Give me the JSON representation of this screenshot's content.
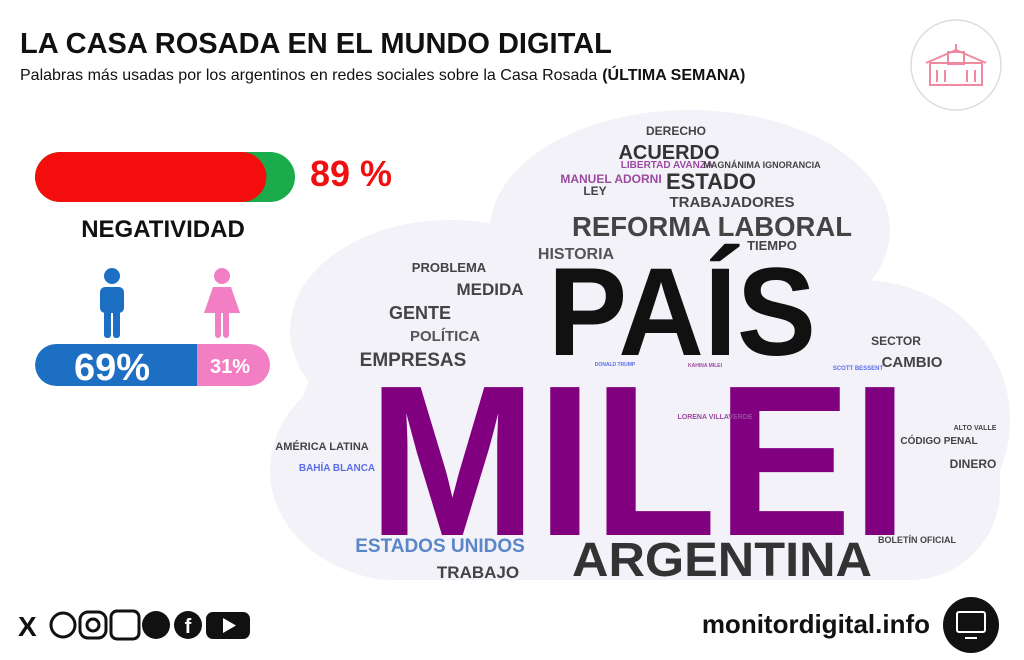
{
  "header": {
    "title": "LA CASA ROSADA EN EL MUNDO DIGITAL",
    "subtitle": "Palabras más usadas por los argentinos en redes sociales sobre la Casa Rosada",
    "subtitle_bold": "(ÚLTIMA SEMANA)"
  },
  "negativity": {
    "value": 89,
    "label": "89 %",
    "caption": "NEGATIVIDAD"
  },
  "gender": {
    "male": {
      "value": 69,
      "label": "69%"
    },
    "female": {
      "value": 31,
      "label": "31%"
    }
  },
  "word_cloud": {
    "words": [
      "DERECHO",
      "ACUERDO",
      "LIBERTAD AVANZA",
      "MAGNÁNIMA IGNORANCIA",
      "MANUEL ADORNI",
      "ESTADO",
      "LEY",
      "TRABAJADORES",
      "REFORMA LABORAL",
      "TIEMPO",
      "HISTORIA",
      "PROBLEMA",
      "MEDIDA",
      "PAÍS",
      "GENTE",
      "POLÍTICA",
      "SECTOR",
      "EMPRESAS",
      "CAMBIO",
      "DONALD TRUMP",
      "KAHINA MILEI",
      "SCOTT BESSENT",
      "MILEI",
      "LORENA VILLAVERDE",
      "ALTO VALLE",
      "AMÉRICA LATINA",
      "CÓDIGO PENAL",
      "BAHÍA BLANCA",
      "DINERO",
      "BOLETÍN OFICIAL",
      "ESTADOS UNIDOS",
      "ARGENTINA",
      "TRABAJO"
    ]
  },
  "footer": {
    "site": "monitordigital.info"
  }
}
